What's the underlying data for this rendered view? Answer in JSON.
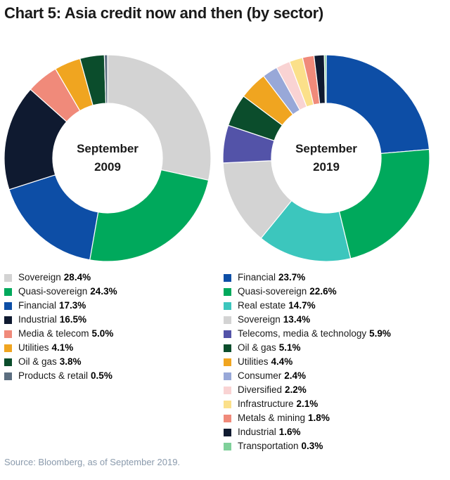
{
  "title": "Chart 5: Asia credit now and then (by sector)",
  "source": "Source: Bloomberg, as of September 2019.",
  "chart_data": [
    {
      "type": "pie",
      "center_label": [
        "September",
        "2009"
      ],
      "slices": [
        {
          "label": "Sovereign",
          "value": 28.4,
          "display": "28.4%",
          "color": "#d3d3d3"
        },
        {
          "label": "Quasi-sovereign",
          "value": 24.3,
          "display": "24.3%",
          "color": "#00a95c"
        },
        {
          "label": "Financial",
          "value": 17.3,
          "display": "17.3%",
          "color": "#0d4ea6"
        },
        {
          "label": "Industrial",
          "value": 16.5,
          "display": "16.5%",
          "color": "#0f1a30"
        },
        {
          "label": "Media & telecom",
          "value": 5.0,
          "display": "5.0%",
          "color": "#f08a7a"
        },
        {
          "label": "Utilities",
          "value": 4.1,
          "display": "4.1%",
          "color": "#f0a520"
        },
        {
          "label": "Oil & gas",
          "value": 3.8,
          "display": "3.8%",
          "color": "#0b4d2c"
        },
        {
          "label": "Products & retail",
          "value": 0.5,
          "display": "0.5%",
          "color": "#5c6e80"
        }
      ]
    },
    {
      "type": "pie",
      "center_label": [
        "September",
        "2019"
      ],
      "slices": [
        {
          "label": "Financial",
          "value": 23.7,
          "display": "23.7%",
          "color": "#0d4ea6"
        },
        {
          "label": "Quasi-sovereign",
          "value": 22.6,
          "display": "22.6%",
          "color": "#00a95c"
        },
        {
          "label": "Real estate",
          "value": 14.7,
          "display": "14.7%",
          "color": "#3cc6bd"
        },
        {
          "label": "Sovereign",
          "value": 13.4,
          "display": "13.4%",
          "color": "#d3d3d3"
        },
        {
          "label": "Telecoms, media & technology",
          "value": 5.9,
          "display": "5.9%",
          "color": "#5353a8"
        },
        {
          "label": "Oil & gas",
          "value": 5.1,
          "display": "5.1%",
          "color": "#0b4d2c"
        },
        {
          "label": "Utilities",
          "value": 4.4,
          "display": "4.4%",
          "color": "#f0a520"
        },
        {
          "label": "Consumer",
          "value": 2.4,
          "display": "2.4%",
          "color": "#98a8d8"
        },
        {
          "label": "Diversified",
          "value": 2.2,
          "display": "2.2%",
          "color": "#f9d3d3"
        },
        {
          "label": "Infrastructure",
          "value": 2.1,
          "display": "2.1%",
          "color": "#fbe08a"
        },
        {
          "label": "Metals & mining",
          "value": 1.8,
          "display": "1.8%",
          "color": "#f08a7a"
        },
        {
          "label": "Industrial",
          "value": 1.6,
          "display": "1.6%",
          "color": "#0f1a30"
        },
        {
          "label": "Transportation",
          "value": 0.3,
          "display": "0.3%",
          "color": "#7fd09a"
        }
      ]
    }
  ]
}
